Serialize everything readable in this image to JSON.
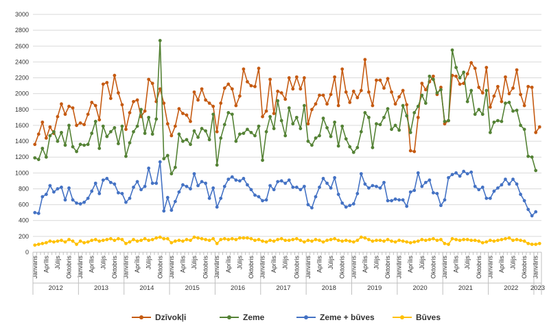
{
  "chart_data": {
    "type": "line",
    "ylim": [
      0,
      3000
    ],
    "yticks": [
      0,
      200,
      400,
      600,
      800,
      1000,
      1200,
      1400,
      1600,
      1800,
      2000,
      2200,
      2400,
      2600,
      2800,
      3000
    ],
    "years": [
      "2012",
      "2013",
      "2014",
      "2015",
      "2016",
      "2017",
      "2018",
      "2019",
      "2020",
      "2021",
      "2022",
      "2023"
    ],
    "month_labels": [
      "Janvāris",
      "Aprīlis",
      "Jūlijs",
      "Oktobris"
    ],
    "grid": "horizontal",
    "legend_position": "bottom",
    "series": [
      {
        "name": "Dzīvokļi",
        "color": "#C55A11",
        "values": [
          1360,
          1490,
          1640,
          1440,
          1580,
          1500,
          1710,
          1870,
          1740,
          1840,
          1820,
          1600,
          1630,
          1610,
          1740,
          1890,
          1850,
          1670,
          2120,
          2140,
          1940,
          2230,
          2010,
          1860,
          1550,
          1760,
          1900,
          1920,
          1710,
          1780,
          2180,
          2130,
          1900,
          2060,
          1880,
          1620,
          1470,
          1590,
          1810,
          1750,
          1730,
          1650,
          2020,
          1920,
          2060,
          1920,
          1880,
          1840,
          1520,
          1880,
          2070,
          2120,
          2060,
          1850,
          1970,
          2310,
          2150,
          2100,
          2090,
          2320,
          1710,
          1780,
          2180,
          1750,
          2030,
          2010,
          1930,
          2200,
          2060,
          2210,
          2060,
          2200,
          1620,
          1800,
          1870,
          1980,
          1980,
          1870,
          1990,
          2210,
          1850,
          2310,
          2020,
          1890,
          2030,
          1950,
          2040,
          2430,
          2020,
          1850,
          2170,
          2170,
          2070,
          2190,
          2020,
          1870,
          1960,
          2040,
          1860,
          1280,
          1270,
          1700,
          2130,
          2050,
          2150,
          2220,
          1990,
          2080,
          1620,
          1660,
          2230,
          2220,
          2120,
          2130,
          2250,
          2390,
          2320,
          2080,
          2010,
          2330,
          1830,
          1970,
          2090,
          1900,
          2210,
          2000,
          2070,
          2300,
          1990,
          1850,
          2090,
          2080,
          1510,
          1580
        ]
      },
      {
        "name": "Zeme",
        "color": "#548235",
        "values": [
          1190,
          1170,
          1310,
          1200,
          1470,
          1520,
          1400,
          1510,
          1350,
          1600,
          1330,
          1270,
          1360,
          1350,
          1360,
          1500,
          1650,
          1310,
          1590,
          1460,
          1520,
          1570,
          1370,
          1590,
          1210,
          1380,
          1520,
          1590,
          1800,
          1500,
          1700,
          1490,
          1680,
          2670,
          1180,
          1220,
          990,
          1070,
          1490,
          1400,
          1420,
          1360,
          1530,
          1450,
          1560,
          1530,
          1420,
          1740,
          1100,
          1440,
          1610,
          1760,
          1740,
          1400,
          1490,
          1500,
          1550,
          1510,
          1470,
          1590,
          1160,
          1520,
          1710,
          1560,
          1910,
          1660,
          1470,
          1820,
          1620,
          1700,
          1560,
          1850,
          1400,
          1350,
          1440,
          1470,
          1690,
          1570,
          1460,
          1640,
          1340,
          1590,
          1430,
          1330,
          1260,
          1320,
          1520,
          1760,
          1700,
          1320,
          1620,
          1610,
          1700,
          1810,
          1550,
          1600,
          1540,
          1850,
          1720,
          1510,
          1760,
          1840,
          1980,
          1880,
          2220,
          2180,
          2010,
          2050,
          1650,
          1660,
          2550,
          2330,
          2200,
          2270,
          1900,
          2040,
          1740,
          1800,
          1740,
          2040,
          1510,
          1640,
          1660,
          1650,
          1880,
          1890,
          1780,
          1790,
          1600,
          1550,
          1210,
          1200,
          1030
        ]
      },
      {
        "name": "Zeme + būves",
        "color": "#4472C4",
        "values": [
          500,
          490,
          700,
          730,
          840,
          760,
          800,
          820,
          660,
          810,
          660,
          620,
          610,
          630,
          680,
          770,
          870,
          740,
          910,
          930,
          880,
          860,
          750,
          740,
          630,
          680,
          820,
          890,
          790,
          830,
          1060,
          870,
          870,
          1140,
          520,
          690,
          530,
          640,
          760,
          850,
          830,
          800,
          990,
          840,
          890,
          870,
          680,
          810,
          570,
          680,
          830,
          920,
          950,
          910,
          900,
          930,
          850,
          790,
          720,
          700,
          650,
          660,
          840,
          790,
          890,
          900,
          870,
          910,
          820,
          820,
          790,
          830,
          600,
          560,
          700,
          820,
          930,
          870,
          810,
          940,
          730,
          620,
          570,
          590,
          610,
          740,
          990,
          860,
          810,
          840,
          830,
          810,
          880,
          650,
          650,
          670,
          660,
          660,
          580,
          760,
          780,
          1000,
          830,
          880,
          910,
          750,
          740,
          590,
          660,
          940,
          980,
          1000,
          960,
          1020,
          990,
          1010,
          830,
          790,
          820,
          680,
          680,
          770,
          810,
          850,
          920,
          860,
          920,
          860,
          730,
          650,
          540,
          460,
          510
        ]
      },
      {
        "name": "Būves",
        "color": "#FFC000",
        "values": [
          90,
          100,
          110,
          120,
          140,
          130,
          140,
          150,
          130,
          160,
          140,
          100,
          140,
          120,
          130,
          150,
          160,
          140,
          150,
          160,
          170,
          150,
          170,
          160,
          110,
          130,
          160,
          140,
          150,
          170,
          150,
          160,
          180,
          190,
          170,
          170,
          120,
          140,
          150,
          140,
          160,
          150,
          190,
          180,
          170,
          160,
          150,
          170,
          110,
          160,
          170,
          160,
          170,
          160,
          180,
          180,
          180,
          170,
          150,
          160,
          140,
          130,
          150,
          140,
          160,
          170,
          150,
          150,
          160,
          170,
          150,
          130,
          150,
          140,
          160,
          150,
          130,
          150,
          160,
          170,
          150,
          140,
          150,
          140,
          130,
          150,
          190,
          180,
          160,
          140,
          150,
          150,
          140,
          160,
          140,
          130,
          150,
          140,
          130,
          120,
          130,
          140,
          160,
          150,
          160,
          170,
          150,
          160,
          110,
          100,
          170,
          160,
          150,
          160,
          160,
          150,
          150,
          140,
          120,
          130,
          150,
          140,
          150,
          160,
          170,
          180,
          150,
          160,
          150,
          140,
          110,
          100,
          100,
          110
        ]
      }
    ]
  }
}
